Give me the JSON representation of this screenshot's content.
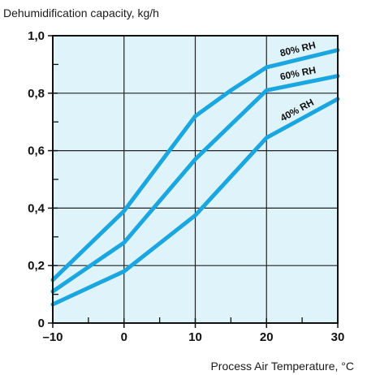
{
  "chart_data": {
    "type": "line",
    "title": "Dehumidification capacity, kg/h",
    "xlabel": "Process Air Temperature, °C",
    "ylabel": "",
    "xlim": [
      -10,
      30
    ],
    "ylim": [
      0,
      1.0
    ],
    "x_ticks": [
      -10,
      0,
      10,
      20,
      30
    ],
    "x_tick_labels": [
      "–10",
      "0",
      "10",
      "20",
      "30"
    ],
    "y_ticks": [
      0,
      0.2,
      0.4,
      0.6,
      0.8,
      1.0
    ],
    "y_tick_labels": [
      "0",
      "0,2",
      "0,4",
      "0,6",
      "0,8",
      "1,0"
    ],
    "grid": true,
    "plot_background": "#dff3fb",
    "line_color": "#1aa6e0",
    "series": [
      {
        "name": "80% RH",
        "x": [
          -10,
          0,
          10,
          15,
          20,
          30
        ],
        "y": [
          0.15,
          0.39,
          0.72,
          0.81,
          0.89,
          0.95
        ]
      },
      {
        "name": "60% RH",
        "x": [
          -10,
          0,
          10,
          15,
          20,
          30
        ],
        "y": [
          0.11,
          0.28,
          0.57,
          0.69,
          0.81,
          0.86
        ]
      },
      {
        "name": "40% RH",
        "x": [
          -10,
          0,
          10,
          15,
          20,
          30
        ],
        "y": [
          0.065,
          0.18,
          0.375,
          0.51,
          0.645,
          0.78
        ]
      }
    ]
  }
}
